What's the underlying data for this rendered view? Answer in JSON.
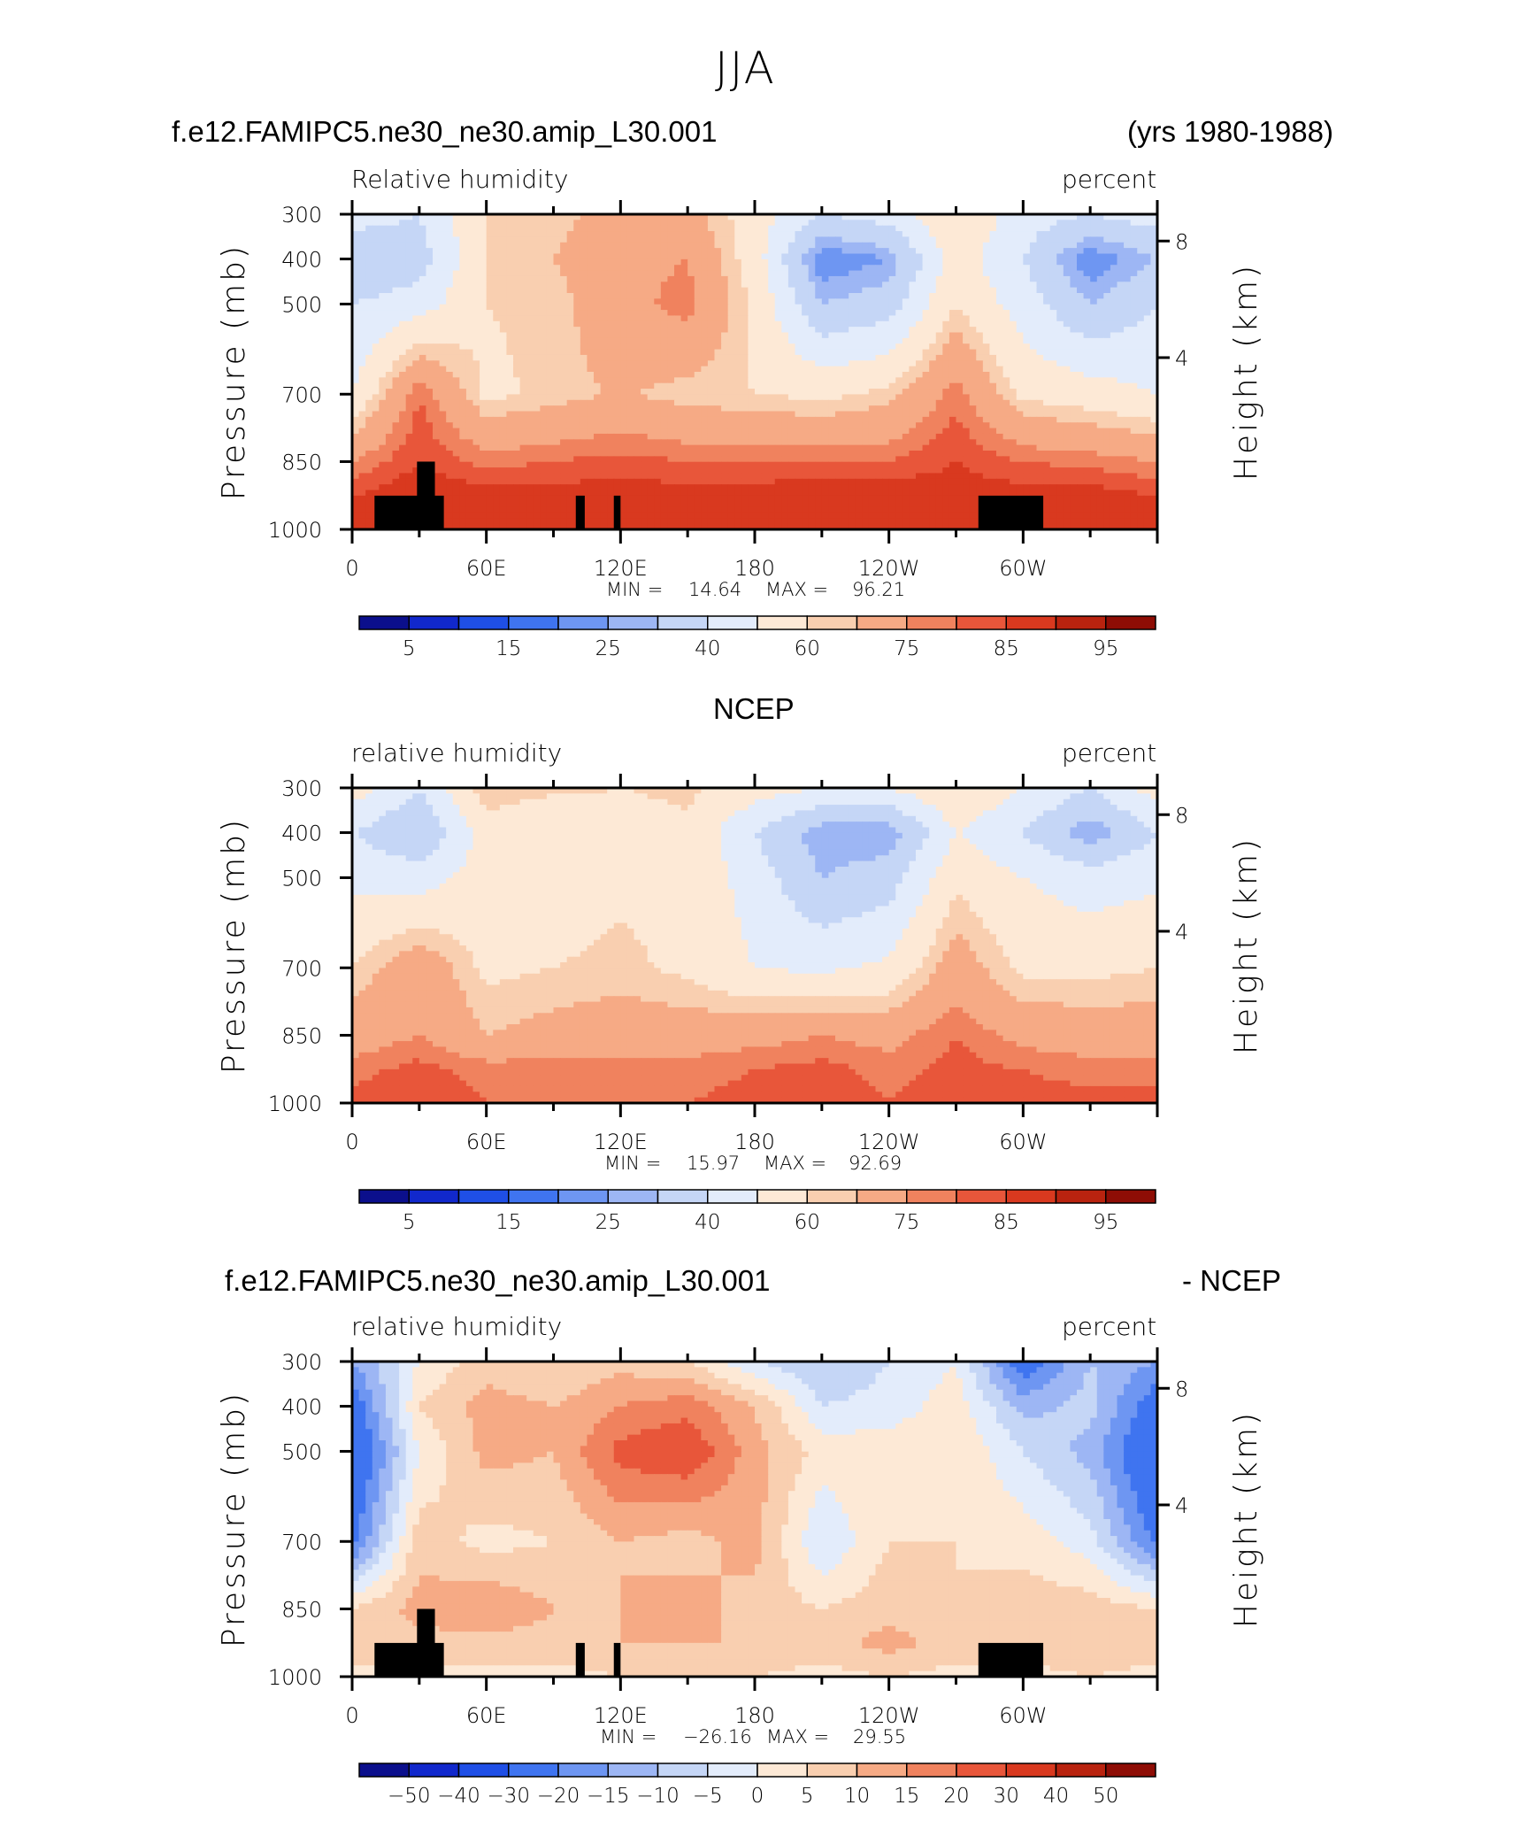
{
  "figure": {
    "season": "JJA",
    "case_name": "f.e12.FAMIPC5.ne30_ne30.amip_L30.001",
    "years": "(yrs 1980-1988)",
    "ncep_label": "NCEP",
    "diff_suffix": "- NCEP"
  },
  "axes": {
    "ylabel": "Pressure (mb)",
    "y2label": "Height (km)",
    "pressure_ticks": [
      "300",
      "400",
      "500",
      "700",
      "850",
      "1000"
    ],
    "pressure_values": [
      300,
      400,
      500,
      700,
      850,
      1000
    ],
    "height_ticks": [
      "8",
      "4"
    ],
    "height_values_km": [
      8,
      4
    ],
    "lon_ticks": [
      "0",
      "60E",
      "120E",
      "180",
      "120W",
      "60W"
    ],
    "lon_values": [
      0,
      60,
      120,
      180,
      240,
      300
    ],
    "lon_range": [
      0,
      360
    ]
  },
  "colors": {
    "palette": [
      "#0b0f8c",
      "#1128cc",
      "#1f4fe6",
      "#3f74f0",
      "#6e96f2",
      "#9db6f4",
      "#c5d6f6",
      "#e3ecfb",
      "#fde9d6",
      "#f9cfb0",
      "#f6aa85",
      "#f0825e",
      "#e8563a",
      "#d9391f",
      "#b9230f",
      "#8e0d05"
    ],
    "land_mask": "#000000"
  },
  "panels": [
    {
      "title_left": "Relative humidity",
      "title_right": "percent",
      "min_label": "MIN =",
      "min_value": "14.64",
      "max_label": "MAX =",
      "max_value": "96.21",
      "colorbar_labels": [
        "5",
        "15",
        "25",
        "40",
        "60",
        "75",
        "85",
        "95"
      ]
    },
    {
      "title_left": "relative humidity",
      "title_right": "percent",
      "min_label": "MIN =",
      "min_value": "15.97",
      "max_label": "MAX =",
      "max_value": "92.69",
      "colorbar_labels": [
        "5",
        "15",
        "25",
        "40",
        "60",
        "75",
        "85",
        "95"
      ]
    },
    {
      "title_left": "relative humidity",
      "title_right": "percent",
      "min_label": "MIN =",
      "min_value": "−26.16",
      "max_label": "MAX =",
      "max_value": "29.55",
      "colorbar_labels": [
        "−50",
        "−40",
        "−30",
        "−20",
        "−15",
        "−10",
        "−5",
        "0",
        "5",
        "10",
        "15",
        "20",
        "30",
        "40",
        "50"
      ]
    }
  ],
  "chart_data": [
    {
      "type": "heatmap",
      "title": "Relative humidity",
      "units": "percent",
      "x_name": "longitude",
      "y_name": "pressure (mb)",
      "x": [
        0,
        30,
        60,
        90,
        120,
        150,
        180,
        210,
        240,
        270,
        300,
        330
      ],
      "y": [
        300,
        400,
        500,
        700,
        850,
        925,
        1000
      ],
      "z": [
        [
          45,
          40,
          60,
          62,
          70,
          68,
          55,
          40,
          45,
          60,
          45,
          40
        ],
        [
          30,
          35,
          60,
          65,
          72,
          75,
          55,
          20,
          25,
          55,
          40,
          20
        ],
        [
          40,
          45,
          60,
          62,
          72,
          78,
          58,
          30,
          35,
          60,
          45,
          30
        ],
        [
          50,
          80,
          58,
          62,
          66,
          62,
          60,
          58,
          62,
          78,
          58,
          55
        ],
        [
          75,
          85,
          78,
          80,
          82,
          80,
          80,
          80,
          80,
          85,
          80,
          78
        ],
        [
          85,
          90,
          88,
          88,
          88,
          88,
          88,
          90,
          90,
          88,
          88,
          88
        ],
        [
          85,
          88,
          86,
          86,
          86,
          86,
          86,
          88,
          88,
          86,
          86,
          86
        ]
      ],
      "levels": [
        5,
        10,
        15,
        20,
        25,
        30,
        40,
        50,
        60,
        65,
        75,
        80,
        85,
        90,
        95
      ],
      "min": 14.64,
      "max": 96.21
    },
    {
      "type": "heatmap",
      "title": "relative humidity",
      "units": "percent",
      "x_name": "longitude",
      "y_name": "pressure (mb)",
      "x": [
        0,
        30,
        60,
        90,
        120,
        150,
        180,
        210,
        240,
        270,
        300,
        330
      ],
      "y": [
        300,
        400,
        500,
        700,
        850,
        925,
        1000
      ],
      "z": [
        [
          55,
          40,
          65,
          62,
          60,
          62,
          55,
          50,
          50,
          60,
          50,
          40
        ],
        [
          40,
          30,
          55,
          50,
          55,
          58,
          40,
          25,
          25,
          50,
          40,
          25
        ],
        [
          48,
          45,
          55,
          55,
          58,
          58,
          45,
          30,
          35,
          58,
          50,
          45
        ],
        [
          60,
          72,
          58,
          60,
          62,
          58,
          50,
          48,
          52,
          70,
          58,
          58
        ],
        [
          70,
          75,
          65,
          68,
          70,
          70,
          72,
          75,
          72,
          80,
          72,
          70
        ],
        [
          78,
          82,
          78,
          78,
          78,
          78,
          80,
          82,
          78,
          82,
          80,
          78
        ],
        [
          82,
          84,
          80,
          80,
          80,
          80,
          82,
          84,
          80,
          84,
          82,
          82
        ]
      ],
      "levels": [
        5,
        10,
        15,
        20,
        25,
        30,
        40,
        50,
        60,
        65,
        75,
        80,
        85,
        90,
        95
      ],
      "min": 15.97,
      "max": 92.69
    },
    {
      "type": "heatmap",
      "title": "relative humidity",
      "units": "percent",
      "x_name": "longitude",
      "y_name": "pressure (mb)",
      "x": [
        0,
        30,
        60,
        90,
        120,
        150,
        180,
        210,
        240,
        270,
        300,
        330
      ],
      "y": [
        300,
        400,
        500,
        700,
        850,
        925,
        1000
      ],
      "z": [
        [
          -15,
          0,
          8,
          5,
          8,
          5,
          -5,
          -10,
          -5,
          0,
          -25,
          -10
        ],
        [
          -25,
          5,
          12,
          10,
          15,
          18,
          10,
          -5,
          -3,
          3,
          -12,
          -8
        ],
        [
          -30,
          0,
          12,
          10,
          22,
          25,
          12,
          3,
          3,
          5,
          -5,
          -12
        ],
        [
          -22,
          8,
          3,
          5,
          10,
          8,
          12,
          -5,
          5,
          5,
          3,
          -3
        ],
        [
          5,
          12,
          15,
          10,
          10,
          12,
          8,
          5,
          8,
          5,
          8,
          8
        ],
        [
          8,
          8,
          8,
          8,
          10,
          10,
          10,
          8,
          12,
          8,
          8,
          10
        ],
        [
          3,
          3,
          3,
          3,
          5,
          5,
          5,
          3,
          5,
          3,
          3,
          5
        ]
      ],
      "levels": [
        -50,
        -40,
        -30,
        -20,
        -15,
        -10,
        -5,
        0,
        5,
        10,
        15,
        20,
        30,
        40,
        50
      ],
      "min": -26.16,
      "max": 29.55
    }
  ]
}
